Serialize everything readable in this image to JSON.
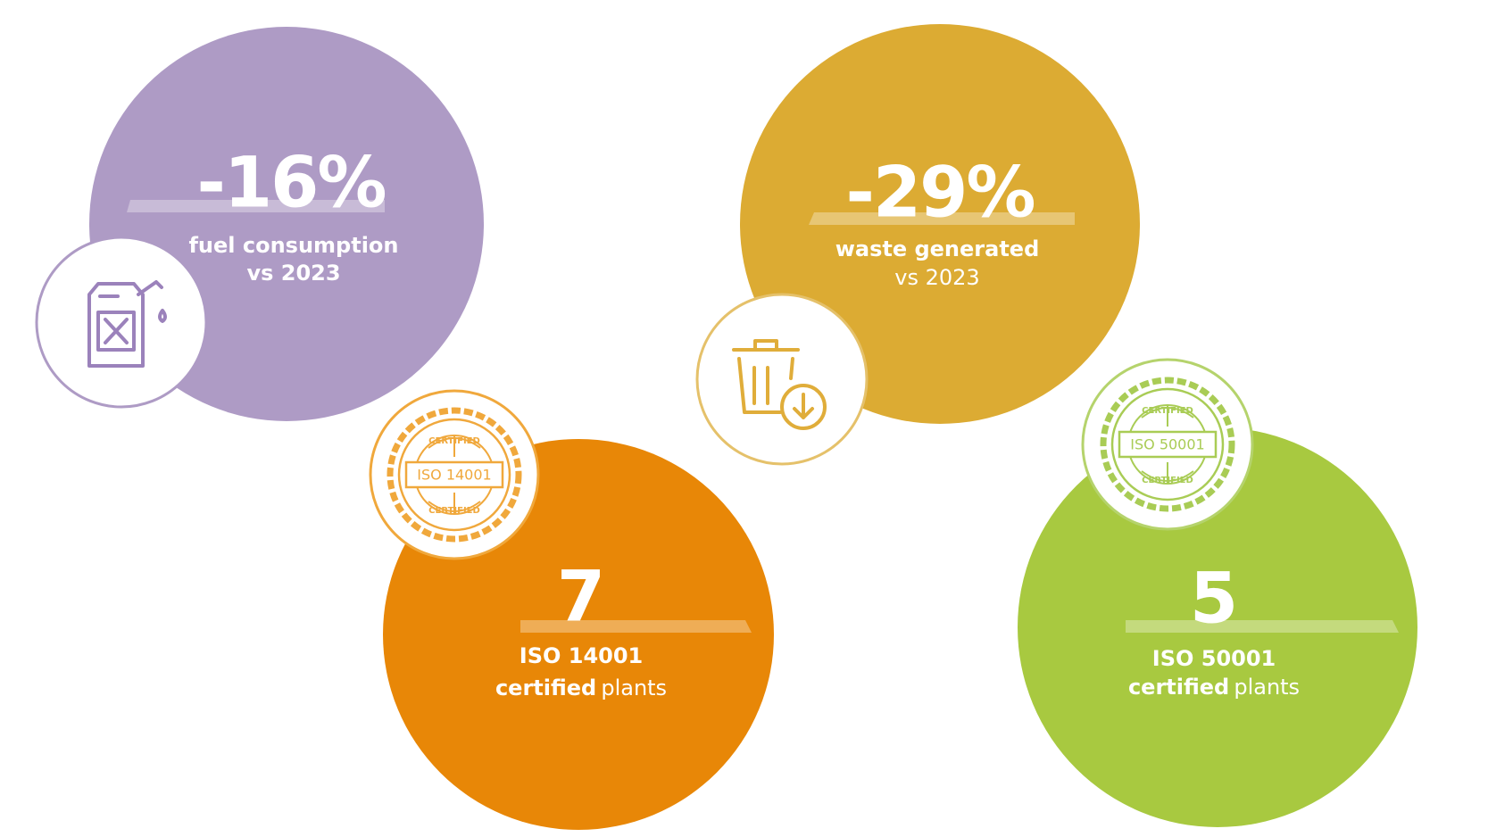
{
  "stats": [
    {
      "value": "-16%",
      "line1": "fuel consumption",
      "line2": "vs 2023"
    },
    {
      "value": "-29%",
      "line1": "waste generated",
      "line2": "vs 2023"
    },
    {
      "value": "7",
      "line1": "ISO 14001",
      "line2_bold": "certified",
      "line2_rest": "plants",
      "badge": {
        "top": "CERTIFIED",
        "label": "ISO 14001",
        "bottom": "CERTIFIED"
      }
    },
    {
      "value": "5",
      "line1": "ISO 50001",
      "line2_bold": "certified",
      "line2_rest": "plants",
      "badge": {
        "top": "CERTIFIED",
        "label": "ISO 50001",
        "bottom": "CERTIFIED"
      }
    }
  ]
}
